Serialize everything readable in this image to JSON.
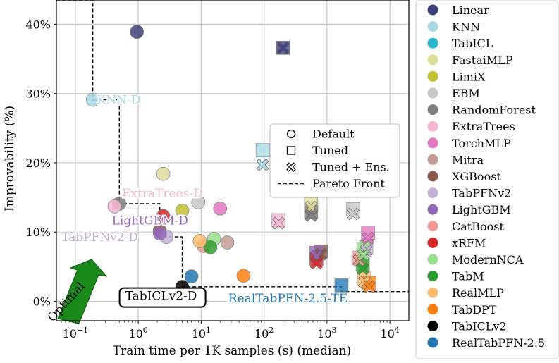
{
  "chart_data": {
    "type": "scatter",
    "xlabel": "Train time per 1K samples (s) (median)",
    "ylabel": "Improvability (%)",
    "xscale": "log",
    "xlim": [
      0.05,
      20000
    ],
    "ylim": [
      -2.8,
      43.5
    ],
    "xticks": [
      {
        "v": 0.1,
        "base": "10",
        "exp": "−1"
      },
      {
        "v": 1,
        "base": "10",
        "exp": "0"
      },
      {
        "v": 10,
        "base": "10",
        "exp": "1"
      },
      {
        "v": 100,
        "base": "10",
        "exp": "2"
      },
      {
        "v": 1000,
        "base": "10",
        "exp": "3"
      },
      {
        "v": 10000,
        "base": "10",
        "exp": "4"
      }
    ],
    "yticks": [
      {
        "v": 0,
        "label": "0%"
      },
      {
        "v": 10,
        "label": "10%"
      },
      {
        "v": 20,
        "label": "20%"
      },
      {
        "v": 30,
        "label": "30%"
      },
      {
        "v": 40,
        "label": "40%"
      }
    ],
    "series": [
      {
        "name": "Linear",
        "color": "#3d3f7a",
        "points": [
          {
            "x": 0.95,
            "y": 38.9,
            "m": "o"
          },
          {
            "x": 200,
            "y": 36.6,
            "m": "s"
          },
          {
            "x": 200,
            "y": 36.6,
            "m": "x"
          }
        ]
      },
      {
        "name": "KNN",
        "color": "#a8d8e2",
        "points": [
          {
            "x": 0.19,
            "y": 29.1,
            "m": "o"
          },
          {
            "x": 95,
            "y": 21.8,
            "m": "s"
          },
          {
            "x": 95,
            "y": 19.7,
            "m": "x"
          }
        ]
      },
      {
        "name": "TabICL",
        "color": "#2ab7c9",
        "points": []
      },
      {
        "name": "FastaiMLP",
        "color": "#dedc9a",
        "points": [
          {
            "x": 2.5,
            "y": 18.4,
            "m": "o"
          },
          {
            "x": 560,
            "y": 14.0,
            "m": "s"
          },
          {
            "x": 560,
            "y": 13.6,
            "m": "x"
          }
        ]
      },
      {
        "name": "LimiX",
        "color": "#c4c034",
        "points": [
          {
            "x": 5.0,
            "y": 13.1,
            "m": "o"
          }
        ]
      },
      {
        "name": "EBM",
        "color": "#c7c7c7",
        "points": [
          {
            "x": 9.0,
            "y": 14.3,
            "m": "o"
          },
          {
            "x": 2600,
            "y": 13.3,
            "m": "s"
          },
          {
            "x": 2600,
            "y": 12.6,
            "m": "x"
          }
        ]
      },
      {
        "name": "RandomForest",
        "color": "#7f7f7f",
        "points": [
          {
            "x": 0.5,
            "y": 14.1,
            "m": "o"
          },
          {
            "x": 560,
            "y": 12.9,
            "m": "s"
          },
          {
            "x": 560,
            "y": 12.4,
            "m": "x"
          }
        ]
      },
      {
        "name": "ExtraTrees",
        "color": "#f4b6d2",
        "points": [
          {
            "x": 0.42,
            "y": 13.7,
            "m": "o"
          },
          {
            "x": 170,
            "y": 11.7,
            "m": "s"
          },
          {
            "x": 170,
            "y": 11.3,
            "m": "x"
          }
        ]
      },
      {
        "name": "TorchMLP",
        "color": "#e377c2",
        "points": [
          {
            "x": 20,
            "y": 13.4,
            "m": "o"
          },
          {
            "x": 4500,
            "y": 9.9,
            "m": "s"
          },
          {
            "x": 4500,
            "y": 9.1,
            "m": "x"
          }
        ]
      },
      {
        "name": "Mitra",
        "color": "#c49c94",
        "points": [
          {
            "x": 26,
            "y": 8.5,
            "m": "o"
          }
        ]
      },
      {
        "name": "XGBoost",
        "color": "#8c564b",
        "points": [
          {
            "x": 2.2,
            "y": 10.2,
            "m": "o"
          },
          {
            "x": 800,
            "y": 7.2,
            "m": "s"
          },
          {
            "x": 800,
            "y": 6.8,
            "m": "x"
          }
        ]
      },
      {
        "name": "TabPFNv2",
        "color": "#c5b0d5",
        "points": [
          {
            "x": 2.8,
            "y": 9.3,
            "m": "o"
          },
          {
            "x": 4200,
            "y": 7.8,
            "m": "s"
          },
          {
            "x": 4200,
            "y": 7.3,
            "m": "x"
          }
        ]
      },
      {
        "name": "LightGBM",
        "color": "#9467bd",
        "points": [
          {
            "x": 2.2,
            "y": 9.8,
            "m": "o"
          },
          {
            "x": 680,
            "y": 7.0,
            "m": "s"
          },
          {
            "x": 680,
            "y": 6.5,
            "m": "x"
          }
        ]
      },
      {
        "name": "CatBoost",
        "color": "#f29a96",
        "points": [
          {
            "x": 11,
            "y": 8.0,
            "m": "o"
          },
          {
            "x": 3200,
            "y": 6.3,
            "m": "s"
          },
          {
            "x": 3200,
            "y": 5.9,
            "m": "x"
          }
        ]
      },
      {
        "name": "xRFM",
        "color": "#d62728",
        "points": [
          {
            "x": 2.5,
            "y": 12.3,
            "m": "o"
          },
          {
            "x": 680,
            "y": 6.1,
            "m": "s"
          },
          {
            "x": 680,
            "y": 5.5,
            "m": "x"
          }
        ]
      },
      {
        "name": "ModernNCA",
        "color": "#98df8a",
        "points": [
          {
            "x": 16,
            "y": 9.0,
            "m": "o"
          },
          {
            "x": 3800,
            "y": 7.6,
            "m": "s"
          },
          {
            "x": 3800,
            "y": 6.7,
            "m": "x"
          }
        ]
      },
      {
        "name": "TabM",
        "color": "#2ca02c",
        "points": [
          {
            "x": 14,
            "y": 7.8,
            "m": "o"
          },
          {
            "x": 3700,
            "y": 5.3,
            "m": "s"
          },
          {
            "x": 3700,
            "y": 4.7,
            "m": "x"
          }
        ]
      },
      {
        "name": "RealMLP",
        "color": "#fdbf6f",
        "points": [
          {
            "x": 9.5,
            "y": 8.7,
            "m": "o"
          },
          {
            "x": 3900,
            "y": 3.3,
            "m": "s"
          },
          {
            "x": 3900,
            "y": 2.8,
            "m": "x"
          }
        ]
      },
      {
        "name": "TabDPT",
        "color": "#ff7f0e",
        "points": [
          {
            "x": 47,
            "y": 3.7,
            "m": "o"
          },
          {
            "x": 4700,
            "y": 2.6,
            "m": "s"
          },
          {
            "x": 4700,
            "y": 2.1,
            "m": "x"
          }
        ]
      },
      {
        "name": "TabICLv2",
        "color": "#000000",
        "points": [
          {
            "x": 5.0,
            "y": 2.1,
            "m": "o"
          }
        ]
      },
      {
        "name": "RealTabPFN-2.5",
        "color": "#1f77b4",
        "points": [
          {
            "x": 7.0,
            "y": 3.6,
            "m": "o"
          },
          {
            "x": 1700,
            "y": 2.3,
            "m": "s"
          }
        ]
      }
    ],
    "pareto_front": [
      [
        0.05,
        43.5
      ],
      [
        0.19,
        43.5
      ],
      [
        0.19,
        29.1
      ],
      [
        0.5,
        29.1
      ],
      [
        0.5,
        14.1
      ],
      [
        2.2,
        14.1
      ],
      [
        2.2,
        9.8
      ],
      [
        2.8,
        9.8
      ],
      [
        2.8,
        9.3
      ],
      [
        5.0,
        9.3
      ],
      [
        5.0,
        2.1
      ],
      [
        1700,
        2.1
      ],
      [
        1700,
        1.4
      ],
      [
        20000,
        1.4
      ]
    ],
    "annotations": [
      {
        "text": "KNN-D",
        "x": 0.22,
        "y": 29.1,
        "color": "#a8d8e2"
      },
      {
        "text": "ExtraTrees-D",
        "x": 0.55,
        "y": 15.6,
        "color": "#f4b6d2"
      },
      {
        "text": "LightGBM-D",
        "x": 0.38,
        "y": 11.7,
        "color": "#9467bd"
      },
      {
        "text": "TabPFNv2-D",
        "x": 0.06,
        "y": 9.3,
        "color": "#c5b0d5"
      },
      {
        "text": "TabICLv2-D",
        "x": 0.62,
        "y": 0.8,
        "color": "#000000",
        "boxed": true
      },
      {
        "text": "RealTabPFN-2.5-TE",
        "x": 27,
        "y": 0.45,
        "color": "#1f77b4"
      }
    ],
    "optimal_label": "Optimal",
    "marker_legend": [
      {
        "label": "Default",
        "m": "o"
      },
      {
        "label": "Tuned",
        "m": "s"
      },
      {
        "label": "Tuned + Ens.",
        "m": "x"
      },
      {
        "label": "Pareto Front",
        "m": "line"
      }
    ],
    "legend_position": "right"
  }
}
